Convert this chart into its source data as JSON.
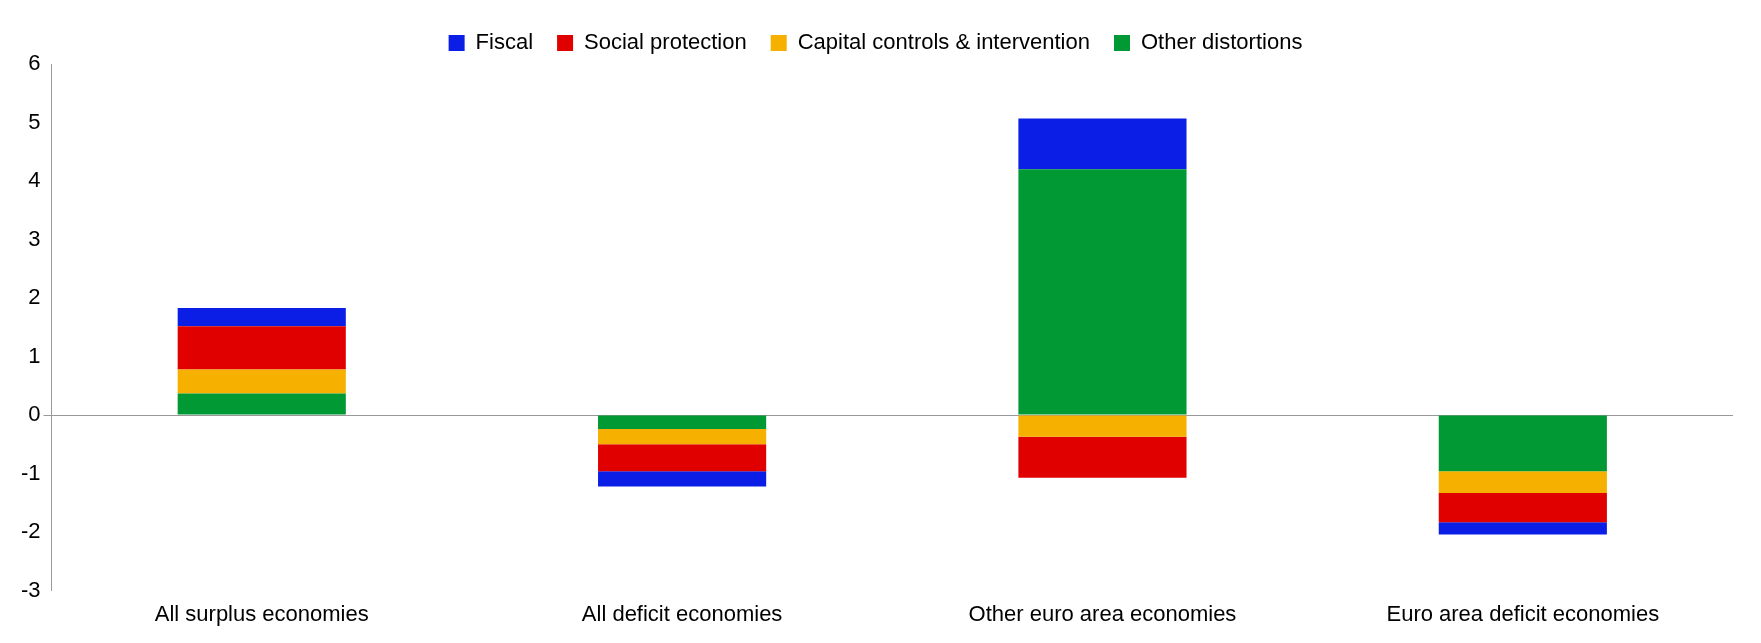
{
  "chart_data": {
    "type": "bar",
    "stacked": true,
    "legend": "top",
    "categories": [
      "All surplus economies",
      "All deficit economies",
      "Other euro area economies",
      "Euro area deficit economies"
    ],
    "series": [
      {
        "name": "Other distortions",
        "color": "#009933",
        "values": [
          0.37,
          -0.24,
          4.2,
          -0.96
        ]
      },
      {
        "name": "Capital controls & intervention",
        "color": "#f5b000",
        "values": [
          0.41,
          -0.26,
          -0.37,
          -0.37
        ]
      },
      {
        "name": "Social protection",
        "color": "#e00000",
        "values": [
          0.74,
          -0.46,
          -0.7,
          -0.5
        ]
      },
      {
        "name": "Fiscal",
        "color": "#0a1ee6",
        "values": [
          0.31,
          -0.26,
          0.87,
          -0.21
        ]
      }
    ],
    "ylim": [
      -3,
      6
    ],
    "yticks": [
      -3,
      -2,
      -1,
      0,
      1,
      2,
      3,
      4,
      5,
      6
    ]
  }
}
